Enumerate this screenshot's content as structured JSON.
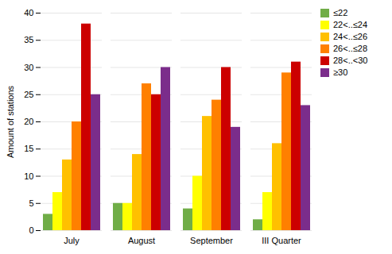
{
  "chart_data": {
    "type": "bar",
    "categories": [
      "July",
      "August",
      "September",
      "III Quarter"
    ],
    "series": [
      {
        "name": "≤22",
        "color": "#70ad47",
        "values": [
          3,
          5,
          4,
          2
        ]
      },
      {
        "name": "22<..≤24",
        "color": "#ffff00",
        "values": [
          7,
          5,
          10,
          7
        ]
      },
      {
        "name": "24<..≤26",
        "color": "#ffc000",
        "values": [
          13,
          14,
          21,
          16
        ]
      },
      {
        "name": "26<..≤28",
        "color": "#ff8000",
        "values": [
          20,
          27,
          24,
          29
        ]
      },
      {
        "name": "28<..<30",
        "color": "#cc0000",
        "values": [
          38,
          25,
          30,
          31
        ]
      },
      {
        "name": "≥30",
        "color": "#7b2d8b",
        "values": [
          25,
          30,
          19,
          23
        ]
      }
    ],
    "ylabel": "Amount of stations",
    "ylim": [
      0,
      40
    ],
    "yticks": [
      0,
      5,
      10,
      15,
      20,
      25,
      30,
      35,
      40
    ],
    "grid": true,
    "legend": "upper right"
  }
}
